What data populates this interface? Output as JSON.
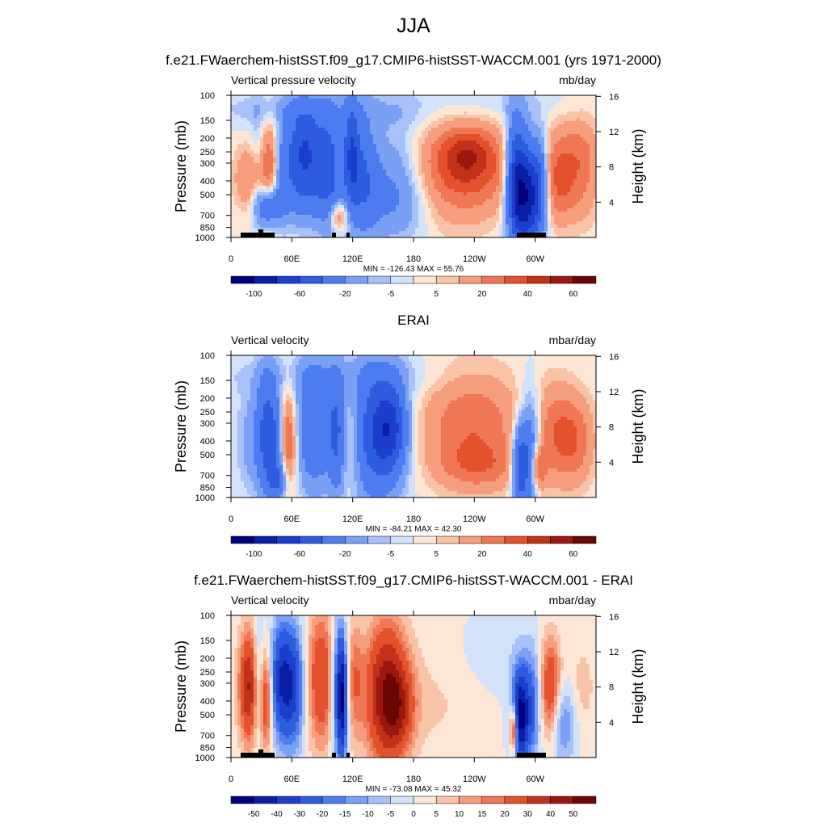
{
  "page": {
    "title": "JJA"
  },
  "colors": {
    "cmap": [
      "#00007f",
      "#0a1fa5",
      "#1b3ecc",
      "#2d5cdf",
      "#4c7cf0",
      "#7aa0f6",
      "#a8c1f8",
      "#d1e2fa",
      "#fde6d6",
      "#f9c3a7",
      "#f59d7c",
      "#ef7756",
      "#e3512d",
      "#c2321a",
      "#9a1810",
      "#6b0606"
    ],
    "terrain": "#000000"
  },
  "chart_data": [
    {
      "type": "heatmap",
      "title": "f.e21.FWaerchem-histSST.f09_g17.CMIP6-histSST-WACCM.001 (yrs 1971-2000)",
      "left_label": "Vertical pressure velocity",
      "units": "mb/day",
      "ylabel": "Pressure (mb)",
      "ylabel_right": "Height (km)",
      "x_ticks": [
        "0",
        "60E",
        "120E",
        "180",
        "120W",
        "60W"
      ],
      "y_ticks": [
        "100",
        "150",
        "200",
        "250",
        "300",
        "400",
        "500",
        "700",
        "850",
        "1000"
      ],
      "y_ticks_right": [
        "16",
        "12",
        "8",
        "4"
      ],
      "stats": "MIN = -126.43  MAX =  55.76",
      "colorbar_labels": [
        "-100",
        "-60",
        "-20",
        "-5",
        "5",
        "20",
        "40",
        "60"
      ],
      "xlim": [
        0,
        360
      ],
      "ylim": [
        1000,
        100
      ],
      "has_terrain": true
    },
    {
      "type": "heatmap",
      "title": "ERAI",
      "left_label": "Vertical velocity",
      "units": "mbar/day",
      "ylabel": "Pressure (mb)",
      "ylabel_right": "Height (km)",
      "x_ticks": [
        "0",
        "60E",
        "120E",
        "180",
        "120W",
        "60W"
      ],
      "y_ticks": [
        "100",
        "150",
        "200",
        "250",
        "300",
        "400",
        "500",
        "700",
        "850",
        "1000"
      ],
      "y_ticks_right": [
        "16",
        "12",
        "8",
        "4"
      ],
      "stats": "MIN = -84.21  MAX =  42.30",
      "colorbar_labels": [
        "-100",
        "-60",
        "-20",
        "-5",
        "5",
        "20",
        "40",
        "60"
      ],
      "xlim": [
        0,
        360
      ],
      "ylim": [
        1000,
        100
      ],
      "has_terrain": false
    },
    {
      "type": "heatmap",
      "title": "f.e21.FWaerchem-histSST.f09_g17.CMIP6-histSST-WACCM.001 - ERAI",
      "left_label": "Vertical velocity",
      "units": "mbar/day",
      "ylabel": "Pressure (mb)",
      "ylabel_right": "Height (km)",
      "x_ticks": [
        "0",
        "60E",
        "120E",
        "180",
        "120W",
        "60W"
      ],
      "y_ticks": [
        "100",
        "150",
        "200",
        "250",
        "300",
        "400",
        "500",
        "700",
        "850",
        "1000"
      ],
      "y_ticks_right": [
        "16",
        "12",
        "8",
        "4"
      ],
      "stats": "MIN = -73.08  MAX =  45.32",
      "colorbar_labels": [
        "-50",
        "-40",
        "-30",
        "-20",
        "-15",
        "-10",
        "-5",
        "0",
        "5",
        "10",
        "15",
        "20",
        "30",
        "40",
        "50"
      ],
      "xlim": [
        0,
        360
      ],
      "ylim": [
        1000,
        100
      ],
      "has_terrain": true
    }
  ]
}
